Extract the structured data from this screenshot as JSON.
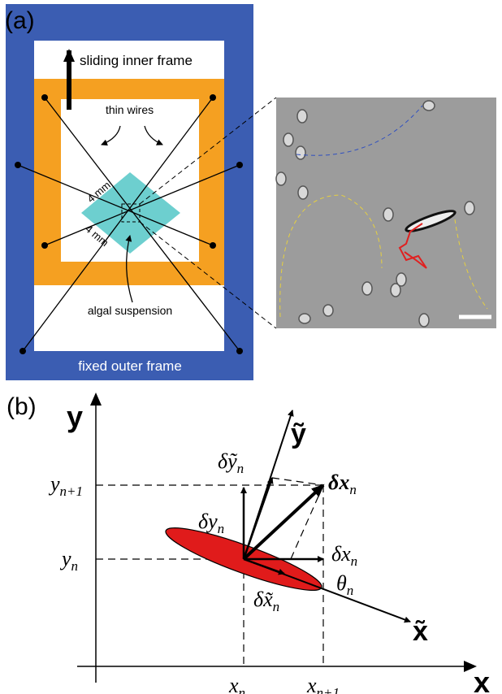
{
  "panel_a": {
    "label": "(a)",
    "sliding": "sliding inner frame",
    "wires": "thin wires",
    "mm_upper": "4 mm",
    "mm_lower": "4 mm",
    "suspension": "algal suspension",
    "outer": "fixed outer frame"
  },
  "panel_b": {
    "label": "(b)",
    "y_axis": "y",
    "x_axis": "x",
    "y_tilde": "ỹ",
    "x_tilde": "x̃",
    "y_n1": {
      "main": "y",
      "sub": "n+1"
    },
    "y_n": {
      "main": "y",
      "sub": "n"
    },
    "x_n": {
      "main": "x",
      "sub": "n"
    },
    "x_n1": {
      "main": "x",
      "sub": "n+1"
    },
    "dy_tilde": {
      "main": "δỹ",
      "sub": "n"
    },
    "dx_vec": {
      "main": "δx",
      "sub": "n"
    },
    "dy": {
      "main": "δy",
      "sub": "n"
    },
    "dx": {
      "main": "δx",
      "sub": "n"
    },
    "theta": {
      "main": "θ",
      "sub": "n"
    },
    "dx_tilde": {
      "main": "δx̃",
      "sub": "n"
    }
  }
}
